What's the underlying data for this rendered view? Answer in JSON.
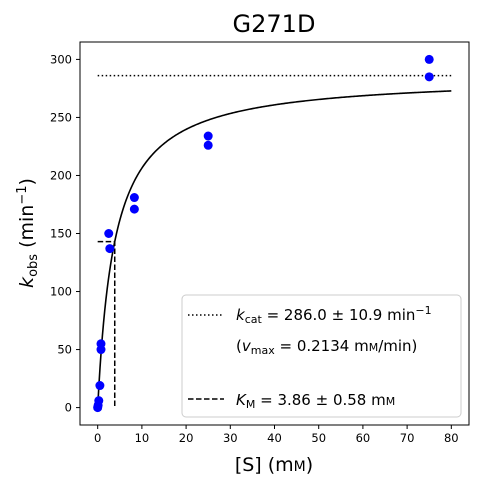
{
  "chart_data": {
    "type": "scatter",
    "title": "G271D",
    "xlabel": "[S] (mM)",
    "ylabel": "k_obs (min^-1)",
    "xlim": [
      -4,
      84
    ],
    "ylim": [
      -15,
      315
    ],
    "xticks": [
      0,
      10,
      20,
      30,
      40,
      50,
      60,
      70,
      80
    ],
    "yticks": [
      0,
      50,
      100,
      150,
      200,
      250,
      300
    ],
    "grid": false,
    "legend_position": "lower right",
    "series": [
      {
        "type": "scatter",
        "color": "#0000ff",
        "x": [
          0,
          0.1,
          0.25,
          0.5,
          0.75,
          0.75,
          2.5,
          2.75,
          8.3,
          8.3,
          25,
          25,
          75,
          75
        ],
        "y": [
          0,
          2,
          6,
          19,
          50,
          55,
          150,
          137,
          181,
          171,
          234,
          226,
          300,
          285
        ]
      },
      {
        "type": "line",
        "style": "solid",
        "color": "#000000",
        "model": "michaelis-menten",
        "kcat": 286.0,
        "km": 3.86,
        "x_range": [
          0,
          80
        ]
      },
      {
        "type": "line",
        "style": "dotted",
        "color": "#000000",
        "label_key": "kcat",
        "x": [
          0,
          80
        ],
        "y": [
          286.0,
          286.0
        ]
      },
      {
        "type": "line",
        "style": "dashed",
        "color": "#000000",
        "label_key": "km",
        "x": [
          0,
          3.86,
          3.86
        ],
        "y": [
          143.0,
          143.0,
          0
        ]
      }
    ],
    "legend": {
      "kcat_label": "k_cat = 286.0 ± 10.9 min^-1",
      "vmax_label": "(v_max = 0.2134 mM/min)",
      "km_label": "K_M = 3.86 ± 0.58 mM"
    },
    "colors": {
      "points": "#0000ff",
      "lines": "#000000"
    }
  }
}
